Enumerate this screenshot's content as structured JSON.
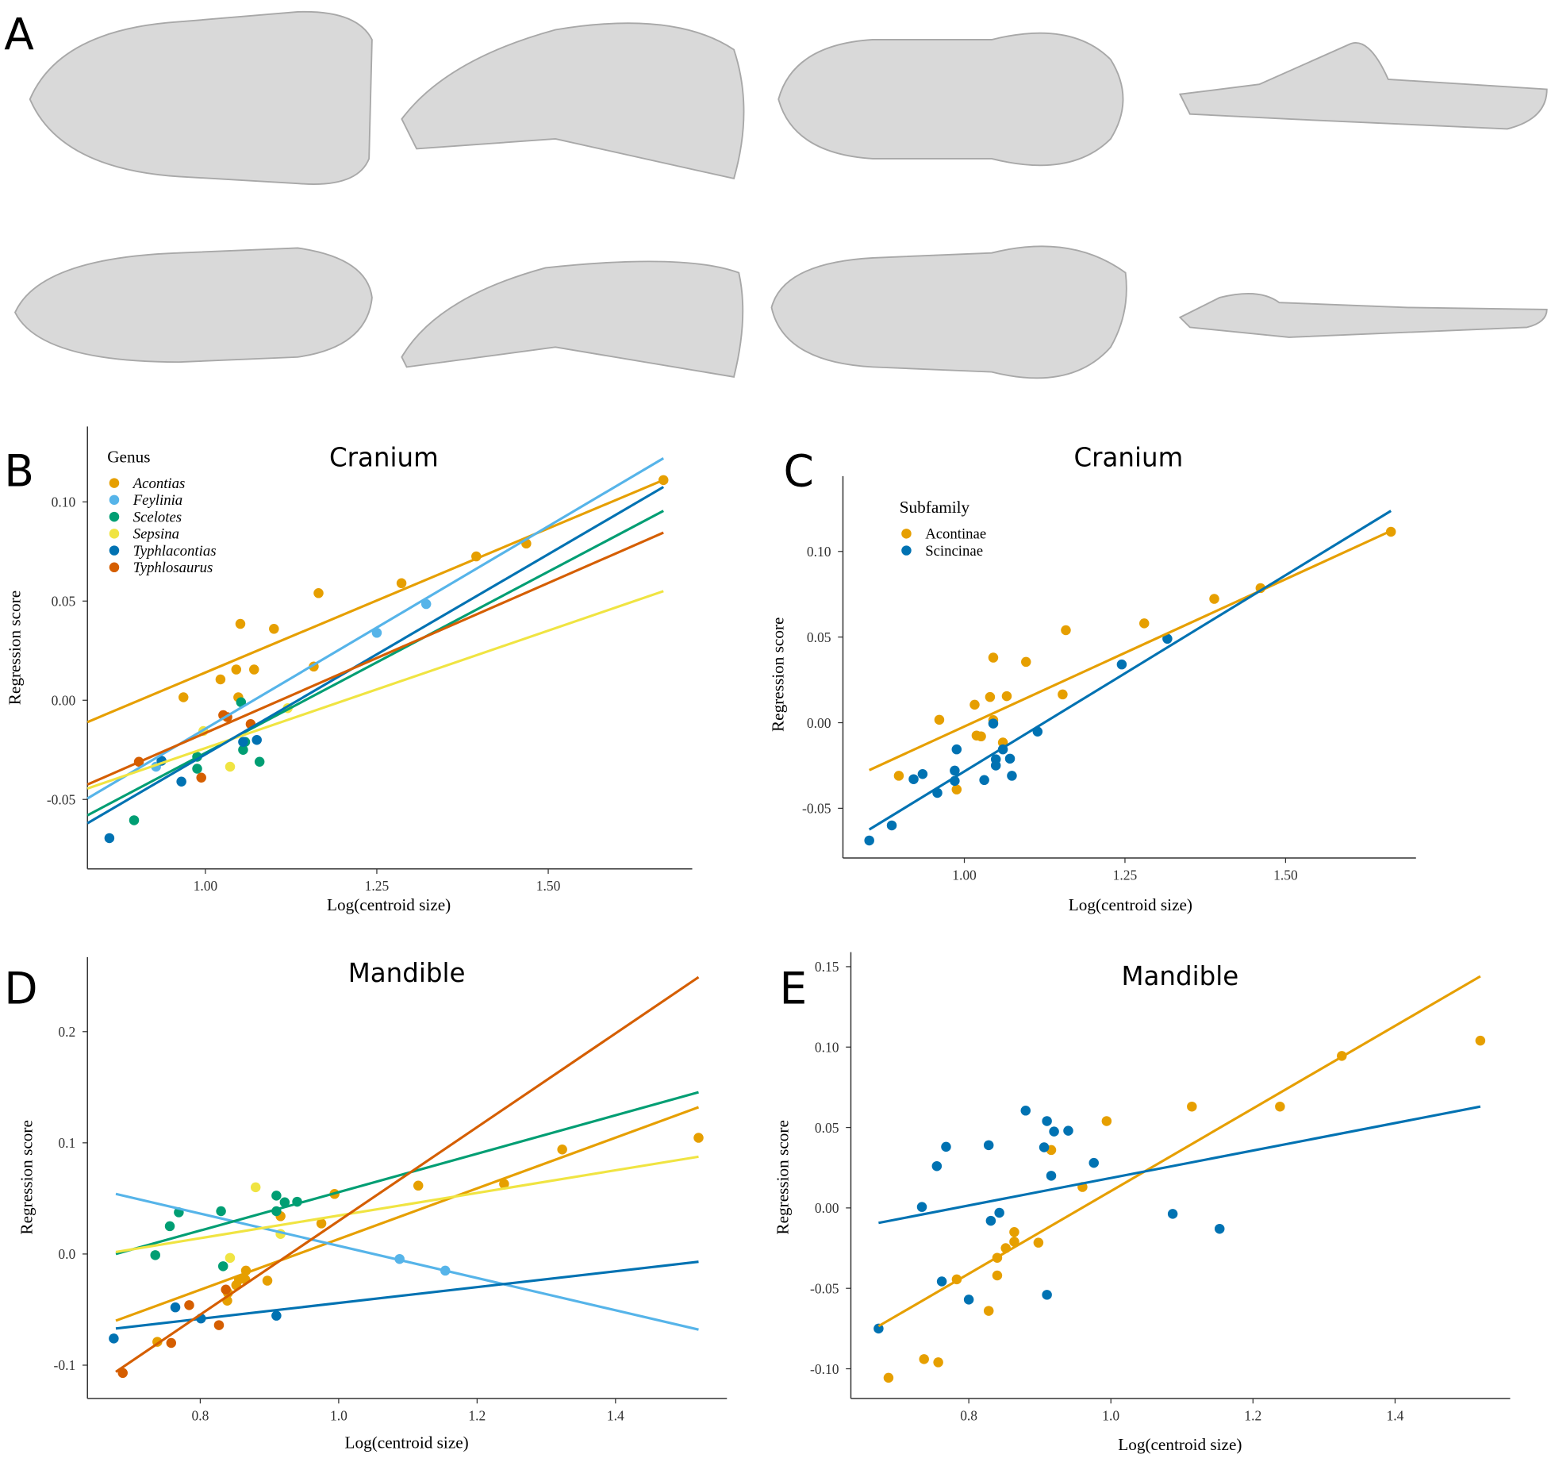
{
  "panel_a": {
    "label": "A"
  },
  "chart_data": [
    {
      "type": "scatter",
      "label": "B",
      "title": "Cranium",
      "xlabel": "Log(centroid size)",
      "ylabel": "Regression score",
      "legend_title": "Genus",
      "legend_italic": true,
      "xlim": [
        0.828,
        1.71
      ],
      "ylim": [
        -0.085,
        0.138
      ],
      "xticks": [
        {
          "value": 1,
          "label": "1.00"
        },
        1.25,
        {
          "value": 1.5,
          "label": "1.50"
        }
      ],
      "yticks": [
        -0.05,
        {
          "value": 0,
          "label": "0.00"
        },
        0.05,
        {
          "value": 0.1,
          "label": "0.10"
        }
      ],
      "series": [
        {
          "name": "Acontias",
          "color": "#E69F00",
          "x": [
            1.668,
            1.468,
            1.395,
            1.286,
            1.165,
            1.158,
            1.1,
            1.051,
            1.071,
            1.045,
            1.022,
            1.048,
            0.968
          ],
          "y": [
            0.111,
            0.079,
            0.0725,
            0.059,
            0.054,
            0.017,
            0.036,
            0.0385,
            0.0155,
            0.0155,
            0.0105,
            0.0015,
            0.0015
          ],
          "fit": {
            "x": [
              0.828,
              1.668
            ],
            "y": [
              -0.011,
              0.111
            ]
          }
        },
        {
          "name": "Feylinia",
          "color": "#56B4E9",
          "x": [
            1.322,
            1.25,
            0.928
          ],
          "y": [
            0.0485,
            0.034,
            -0.0335
          ],
          "fit": {
            "x": [
              0.828,
              1.668
            ],
            "y": [
              -0.0495,
              0.122
            ]
          }
        },
        {
          "name": "Scelotes",
          "color": "#009E73",
          "x": [
            0.896,
            0.988,
            0.988,
            1.052,
            1.055,
            1.079,
            1.058
          ],
          "y": [
            -0.0605,
            -0.0285,
            -0.0345,
            -0.001,
            -0.025,
            -0.031,
            -0.021
          ],
          "fit": {
            "x": [
              0.828,
              1.668
            ],
            "y": [
              -0.058,
              0.0955
            ]
          }
        },
        {
          "name": "Sepsina",
          "color": "#F0E442",
          "x": [
            0.997,
            1.036,
            1.12
          ],
          "y": [
            -0.0155,
            -0.0335,
            -0.004
          ],
          "fit": {
            "x": [
              0.828,
              1.668
            ],
            "y": [
              -0.0445,
              0.055
            ]
          }
        },
        {
          "name": "Typhlacontias",
          "color": "#0072B2",
          "x": [
            0.86,
            0.965,
            0.936,
            1.075,
            1.055
          ],
          "y": [
            -0.0695,
            -0.041,
            -0.0305,
            -0.02,
            -0.021
          ],
          "fit": {
            "x": [
              0.828,
              1.668
            ],
            "y": [
              -0.062,
              0.1075
            ]
          }
        },
        {
          "name": "Typhlosaurus",
          "color": "#D55E00",
          "x": [
            0.903,
            0.994,
            1.026,
            1.032,
            1.066
          ],
          "y": [
            -0.031,
            -0.039,
            -0.0075,
            -0.0085,
            -0.012
          ],
          "fit": {
            "x": [
              0.828,
              1.668
            ],
            "y": [
              -0.0425,
              0.0845
            ]
          }
        }
      ]
    },
    {
      "type": "scatter",
      "label": "C",
      "title": "Cranium",
      "xlabel": "Log(centroid size)",
      "ylabel": "Regression score",
      "legend_title": "Subfamily",
      "legend_italic": false,
      "xlim": [
        0.811,
        1.703
      ],
      "ylim": [
        -0.079,
        0.144
      ],
      "xticks": [
        {
          "value": 1,
          "label": "1.00"
        },
        1.25,
        {
          "value": 1.5,
          "label": "1.50"
        }
      ],
      "yticks": [
        -0.05,
        {
          "value": 0,
          "label": "0.00"
        },
        0.05,
        {
          "value": 0.1,
          "label": "0.10"
        }
      ],
      "series": [
        {
          "name": "Acontinae",
          "color": "#E69F00",
          "x": [
            1.664,
            1.461,
            1.389,
            1.28,
            1.158,
            1.153,
            1.096,
            1.045,
            1.066,
            1.04,
            1.016,
            1.045,
            0.961,
            0.898,
            0.988,
            1.019,
            1.026,
            1.06
          ],
          "y": [
            0.1115,
            0.0786,
            0.0723,
            0.058,
            0.054,
            0.0165,
            0.0355,
            0.038,
            0.0155,
            0.015,
            0.0105,
            0.0015,
            0.0017,
            -0.031,
            -0.039,
            -0.0075,
            -0.008,
            -0.0116
          ],
          "fit": {
            "x": [
              0.852,
              1.664
            ],
            "y": [
              -0.0277,
              0.112
            ]
          }
        },
        {
          "name": "Scincinae",
          "color": "#0072B2",
          "x": [
            0.852,
            0.887,
            0.921,
            0.935,
            0.958,
            0.985,
            0.985,
            0.988,
            1.031,
            1.045,
            1.049,
            1.049,
            1.06,
            1.071,
            1.074,
            1.114,
            1.245,
            1.316
          ],
          "y": [
            -0.0688,
            -0.06,
            -0.033,
            -0.03,
            -0.041,
            -0.028,
            -0.034,
            -0.0156,
            -0.0335,
            -0.0005,
            -0.0214,
            -0.025,
            -0.0156,
            -0.021,
            -0.031,
            -0.0052,
            0.034,
            0.049
          ],
          "fit": {
            "x": [
              0.852,
              1.664
            ],
            "y": [
              -0.0624,
              0.1237
            ]
          }
        }
      ]
    },
    {
      "type": "scatter",
      "label": "D",
      "title": "Mandible",
      "xlabel": "Log(centroid size)",
      "ylabel": "Regression score",
      "xlim": [
        0.637,
        1.561
      ],
      "ylim": [
        -0.13,
        0.267
      ],
      "xticks": [
        0.8,
        {
          "value": 1,
          "label": "1.0"
        },
        1.2,
        1.4
      ],
      "yticks": [
        -0.1,
        {
          "value": 0,
          "label": "0.0"
        },
        0.1,
        0.2
      ],
      "series": [
        {
          "name": "Acontias",
          "color": "#E69F00",
          "x": [
            1.52,
            1.323,
            1.239,
            1.115,
            0.994,
            0.975,
            0.916,
            0.897,
            0.866,
            0.865,
            0.856,
            0.852,
            0.84,
            0.839,
            0.738
          ],
          "y": [
            0.1045,
            0.094,
            0.063,
            0.0615,
            0.054,
            0.0275,
            0.034,
            -0.024,
            -0.015,
            -0.023,
            -0.023,
            -0.028,
            -0.035,
            -0.042,
            -0.079
          ],
          "fit": {
            "x": [
              0.678,
              1.52
            ],
            "y": [
              -0.06,
              0.132
            ]
          }
        },
        {
          "name": "Feylinia",
          "color": "#56B4E9",
          "x": [
            1.088,
            1.154
          ],
          "y": [
            -0.0045,
            -0.015
          ],
          "fit": {
            "x": [
              0.678,
              1.52
            ],
            "y": [
              0.054,
              -0.068
            ]
          }
        },
        {
          "name": "Scelotes",
          "color": "#009E73",
          "x": [
            0.735,
            0.756,
            0.769,
            0.83,
            0.833,
            0.91,
            0.91,
            0.922,
            0.94
          ],
          "y": [
            -0.001,
            0.025,
            0.0375,
            0.0385,
            -0.011,
            0.0525,
            0.0385,
            0.0465,
            0.047
          ],
          "fit": {
            "x": [
              0.678,
              1.52
            ],
            "y": [
              0.0,
              0.1455
            ]
          }
        },
        {
          "name": "Sepsina",
          "color": "#F0E442",
          "x": [
            0.843,
            0.88,
            0.916
          ],
          "y": [
            -0.0035,
            0.06,
            0.018
          ],
          "fit": {
            "x": [
              0.678,
              1.52
            ],
            "y": [
              0.0018,
              0.0875
            ]
          }
        },
        {
          "name": "Typhlacontias",
          "color": "#0072B2",
          "x": [
            0.675,
            0.764,
            0.801,
            0.91
          ],
          "y": [
            -0.076,
            -0.048,
            -0.058,
            -0.0555
          ],
          "fit": {
            "x": [
              0.678,
              1.52
            ],
            "y": [
              -0.067,
              -0.007
            ]
          }
        },
        {
          "name": "Typhlosaurus",
          "color": "#D55E00",
          "x": [
            0.688,
            0.758,
            0.784,
            0.837,
            0.827
          ],
          "y": [
            -0.107,
            -0.08,
            -0.046,
            -0.032,
            -0.064
          ],
          "fit": {
            "x": [
              0.678,
              1.52
            ],
            "y": [
              -0.106,
              0.249
            ]
          }
        }
      ]
    },
    {
      "type": "scatter",
      "label": "E",
      "title": "Mandible",
      "xlabel": "Log(centroid size)",
      "ylabel": "Regression score",
      "xlim": [
        0.634,
        1.562
      ],
      "ylim": [
        -0.1185,
        0.159
      ],
      "xticks": [
        0.8,
        {
          "value": 1,
          "label": "1.0"
        },
        1.2,
        1.4
      ],
      "yticks": [
        {
          "value": -0.1,
          "label": "-0.10"
        },
        -0.05,
        {
          "value": 0,
          "label": "0.00"
        },
        0.05,
        {
          "value": 0.1,
          "label": "0.10"
        },
        0.15
      ],
      "series": [
        {
          "name": "Acontinae",
          "color": "#E69F00",
          "x": [
            1.52,
            1.325,
            1.238,
            1.114,
            0.994,
            0.96,
            0.916,
            0.898,
            0.864,
            0.864,
            0.852,
            0.84,
            0.84,
            0.783,
            0.828,
            0.737,
            0.757,
            0.687
          ],
          "y": [
            0.104,
            0.0945,
            0.063,
            0.063,
            0.054,
            0.013,
            0.036,
            -0.0216,
            -0.015,
            -0.021,
            -0.025,
            -0.031,
            -0.042,
            -0.0444,
            -0.064,
            -0.094,
            -0.096,
            -0.1056
          ],
          "fit": {
            "x": [
              0.673,
              1.52
            ],
            "y": [
              -0.0735,
              0.144
            ]
          }
        },
        {
          "name": "Scincinae",
          "color": "#0072B2",
          "x": [
            0.673,
            0.734,
            0.755,
            0.768,
            0.828,
            0.831,
            0.843,
            0.762,
            0.8,
            0.88,
            0.91,
            0.906,
            0.92,
            0.94,
            0.916,
            0.976,
            0.91,
            1.087,
            1.153
          ],
          "y": [
            -0.075,
            0.0006,
            0.026,
            0.038,
            0.039,
            -0.008,
            -0.003,
            -0.0457,
            -0.057,
            0.0605,
            0.054,
            0.0377,
            0.0475,
            0.048,
            0.02,
            0.028,
            -0.054,
            -0.0037,
            -0.013
          ],
          "fit": {
            "x": [
              0.673,
              1.52
            ],
            "y": [
              -0.0093,
              0.063
            ]
          }
        }
      ]
    }
  ]
}
